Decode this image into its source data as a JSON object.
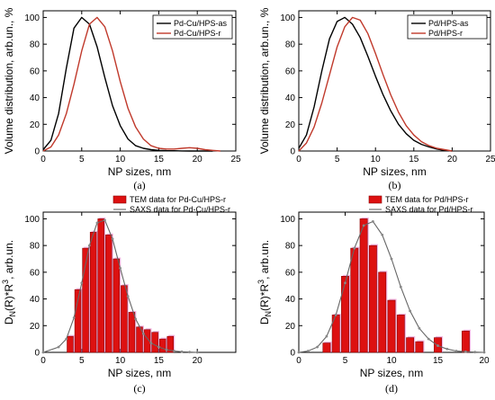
{
  "chart_data": [
    {
      "panel": "(a)",
      "type": "line",
      "xlabel": "NP sizes, nm",
      "ylabel": "Volume distribution, arb.un., %",
      "xlim": [
        0,
        25
      ],
      "ylim": [
        0,
        105
      ],
      "xticks": [
        0,
        5,
        10,
        15,
        20,
        25
      ],
      "yticks": [
        0,
        20,
        40,
        60,
        80,
        100
      ],
      "legend_position": "top-right",
      "series": [
        {
          "name": "Pd-Cu/HPS-as",
          "color": "#000000",
          "x": [
            0,
            1,
            2,
            3,
            4,
            5,
            6,
            7,
            8,
            9,
            10,
            11,
            12,
            13,
            14,
            15,
            16,
            17,
            18,
            19,
            20,
            21,
            22
          ],
          "y": [
            1,
            8,
            28,
            62,
            92,
            100,
            95,
            78,
            55,
            34,
            19,
            9,
            4,
            2,
            1,
            0.5,
            0.3,
            0.2,
            0.1,
            0,
            0,
            0,
            0
          ]
        },
        {
          "name": "Pd-Cu/HPS-r",
          "color": "#c0392b",
          "x": [
            0,
            1,
            2,
            3,
            4,
            5,
            6,
            7,
            8,
            9,
            10,
            11,
            12,
            13,
            14,
            15,
            16,
            17,
            18,
            19,
            20,
            21,
            22,
            23
          ],
          "y": [
            0,
            3,
            12,
            28,
            50,
            75,
            95,
            100,
            93,
            75,
            52,
            32,
            18,
            9,
            4,
            2,
            1.5,
            1.5,
            2,
            2.5,
            2,
            1,
            0.5,
            0
          ]
        }
      ]
    },
    {
      "panel": "(b)",
      "type": "line",
      "xlabel": "NP sizes, nm",
      "ylabel": "Volume distribution, arb.un., %",
      "xlim": [
        0,
        25
      ],
      "ylim": [
        0,
        105
      ],
      "xticks": [
        0,
        5,
        10,
        15,
        20,
        25
      ],
      "yticks": [
        0,
        20,
        40,
        60,
        80,
        100
      ],
      "legend_position": "top-right",
      "series": [
        {
          "name": "Pd/HPS-as",
          "color": "#000000",
          "x": [
            0,
            1,
            2,
            3,
            4,
            5,
            6,
            7,
            8,
            9,
            10,
            11,
            12,
            13,
            14,
            15,
            16,
            17,
            18,
            19,
            20
          ],
          "y": [
            2,
            12,
            33,
            60,
            84,
            97,
            100,
            95,
            85,
            71,
            56,
            42,
            30,
            20,
            13,
            8,
            5,
            3,
            1.5,
            0.5,
            0
          ]
        },
        {
          "name": "Pd/HPS-r",
          "color": "#c0392b",
          "x": [
            0,
            1,
            2,
            3,
            4,
            5,
            6,
            7,
            8,
            9,
            10,
            11,
            12,
            13,
            14,
            15,
            16,
            17,
            18,
            19,
            20
          ],
          "y": [
            0,
            6,
            18,
            36,
            57,
            78,
            93,
            100,
            98,
            88,
            73,
            57,
            42,
            29,
            19,
            12,
            7,
            4,
            2,
            1,
            0
          ]
        }
      ]
    },
    {
      "panel": "(c)",
      "type": "bar",
      "xlabel": "NP sizes, nm",
      "ylabel": "DN(R)*R3, arb.un.",
      "xlim": [
        0,
        25
      ],
      "ylim": [
        0,
        105
      ],
      "xticks": [
        0,
        5,
        10,
        15,
        20
      ],
      "yticks": [
        0,
        20,
        40,
        60,
        80,
        100
      ],
      "legend_position": "top",
      "bar_width": 0.8,
      "series": [
        {
          "name": "TEM data for Pd-Cu/HPS-r",
          "color": "#dd1111",
          "x": [
            3.5,
            4.5,
            5.5,
            6.5,
            7.5,
            8.5,
            9.5,
            10.5,
            11.5,
            12.5,
            13.5,
            14.5,
            15.5,
            16.5
          ],
          "values": [
            12,
            47,
            78,
            90,
            100,
            88,
            70,
            50,
            30,
            19,
            17,
            15,
            10,
            12
          ]
        },
        {
          "name": "SAXS data for Pd-Cu/HPS-r",
          "color": "#888888",
          "x": [
            0,
            2,
            3,
            4,
            5,
            6,
            7,
            8,
            9,
            10,
            11,
            12,
            13,
            14,
            15,
            16,
            17,
            18,
            19,
            20
          ],
          "y": [
            0,
            4,
            10,
            26,
            52,
            80,
            97,
            99,
            85,
            63,
            42,
            25,
            14,
            7,
            4,
            2,
            1,
            0.5,
            0.2,
            0
          ]
        }
      ]
    },
    {
      "panel": "(d)",
      "type": "bar",
      "xlabel": "NP sizes, nm",
      "ylabel": "DN(R)*R3, arb.un.",
      "xlim": [
        0,
        20
      ],
      "ylim": [
        0,
        105
      ],
      "xticks": [
        0,
        5,
        10,
        15,
        20
      ],
      "yticks": [
        0,
        20,
        40,
        60,
        80,
        100
      ],
      "legend_position": "top",
      "bar_width": 0.8,
      "series": [
        {
          "name": "TEM data for Pd/HPS-r",
          "color": "#dd1111",
          "x": [
            3,
            4,
            5,
            6,
            7,
            8,
            9,
            10,
            11,
            12,
            13,
            15,
            18
          ],
          "values": [
            7,
            28,
            57,
            78,
            100,
            80,
            60,
            39,
            28,
            11,
            8,
            11,
            16
          ]
        },
        {
          "name": "SAXS data for Pd/HPS-r",
          "color": "#888888",
          "x": [
            0,
            1,
            2,
            3,
            4,
            5,
            6,
            7,
            8,
            9,
            10,
            11,
            12,
            13,
            14,
            15,
            16,
            17,
            18,
            19,
            20
          ],
          "y": [
            0,
            1,
            4,
            12,
            28,
            52,
            78,
            95,
            98,
            88,
            70,
            49,
            31,
            18,
            10,
            5,
            2.5,
            1,
            0.5,
            0.2,
            0
          ]
        }
      ]
    }
  ]
}
